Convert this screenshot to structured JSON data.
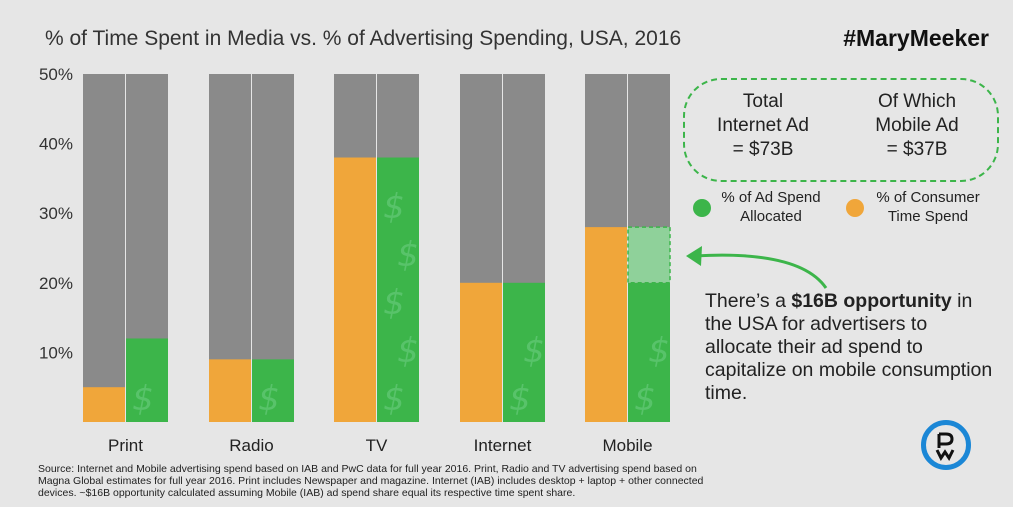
{
  "title": "% of Time Spent in Media vs. % of Advertising Spending, USA, 2016",
  "hashtag": "#MaryMeeker",
  "info_box": {
    "col1": [
      "Total",
      "Internet Ad",
      "= $73B"
    ],
    "col2": [
      "Of Which",
      "Mobile Ad",
      "= $37B"
    ]
  },
  "legend": {
    "ad_line1": "% of Ad Spend",
    "ad_line2": "Allocated",
    "time_line1": "% of Consumer",
    "time_line2": "Time Spend"
  },
  "callout": {
    "prefix": "There’s a ",
    "bold": "$16B opportunity",
    "rest": " in the USA for advertisers to allocate their ad spend to capitalize on mobile consumption time."
  },
  "source": "Source: Internet and Mobile advertising spend based on IAB and PwC data for full year 2016. Print, Radio and TV advertising spend based on Magna Global estimates for full year 2016. Print includes Newspaper and magazine. Internet (IAB) includes desktop + laptop + other connected devices. ~$16B opportunity calculated assuming Mobile (IAB) ad spend share equal its respective time spent share.",
  "colors": {
    "time": "#f0a63a",
    "ad": "#3cb54a",
    "background_bar": "#8a8a8a",
    "opportunity": "#8fd19a",
    "arrow": "#3cb54a"
  },
  "chart_data": {
    "type": "bar",
    "categories": [
      "Print",
      "Radio",
      "TV",
      "Internet",
      "Mobile"
    ],
    "series": [
      {
        "name": "% of Consumer Time Spend",
        "values": [
          5,
          9,
          38,
          20,
          28
        ]
      },
      {
        "name": "% of Ad Spend Allocated",
        "values": [
          12,
          9,
          38,
          20,
          20
        ]
      }
    ],
    "opportunity": {
      "category": "Mobile",
      "from": 20,
      "to": 28
    },
    "yticks": [
      "10%",
      "20%",
      "30%",
      "40%",
      "50%"
    ],
    "ytick_values": [
      10,
      20,
      30,
      40,
      50
    ],
    "ylim": [
      0,
      50
    ],
    "xlabel": "",
    "ylabel": "",
    "grid": false
  }
}
